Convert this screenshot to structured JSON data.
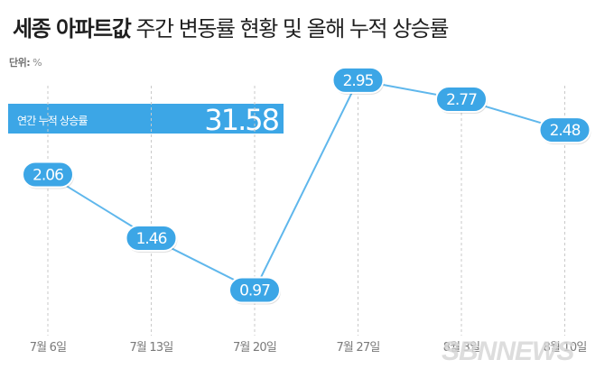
{
  "title": {
    "bold": "세종 아파트값",
    "rest": " 주간 변동률 현황 및 올해 누적 상승률"
  },
  "unit": {
    "label": "단위:",
    "value": "%"
  },
  "cumulative": {
    "label": "연간 누적 상승률",
    "value": "31.58"
  },
  "watermark": "SBNNEWS",
  "colors": {
    "line": "#5fb7ec",
    "marker": "#3ca6e6",
    "banner": "#3ca6e6",
    "grid": "#c9c9c9",
    "tick_text": "#7a7a7a",
    "background": "#ffffff"
  },
  "chart_data": {
    "type": "line",
    "title": "세종 아파트값 주간 변동률 현황 및 올해 누적 상승률",
    "xlabel": "",
    "ylabel": "",
    "unit": "%",
    "categories": [
      "7월 6일",
      "7월 13일",
      "7월 20일",
      "7월 27일",
      "8월 3일",
      "8월 10일"
    ],
    "values": [
      2.06,
      1.46,
      0.97,
      2.95,
      2.77,
      2.48
    ],
    "value_labels": [
      "2.06",
      "1.46",
      "0.97",
      "2.95",
      "2.77",
      "2.48"
    ],
    "ylim": [
      0.6,
      3.0
    ],
    "grid": "vertical-dashed",
    "legend": "none"
  }
}
